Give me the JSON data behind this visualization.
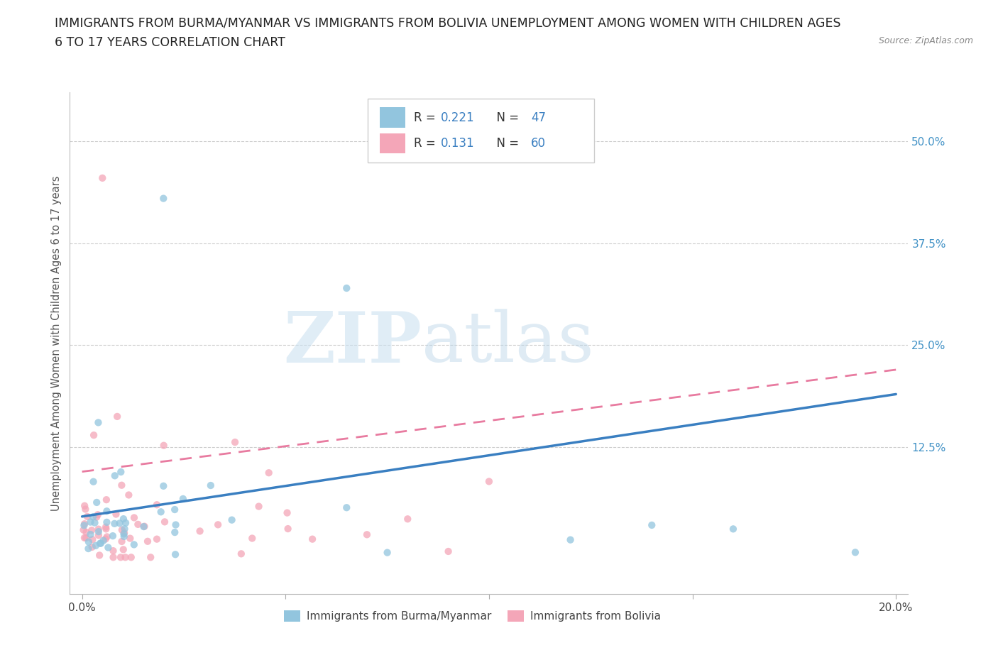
{
  "title_line1": "IMMIGRANTS FROM BURMA/MYANMAR VS IMMIGRANTS FROM BOLIVIA UNEMPLOYMENT AMONG WOMEN WITH CHILDREN AGES",
  "title_line2": "6 TO 17 YEARS CORRELATION CHART",
  "source_text": "Source: ZipAtlas.com",
  "ylabel": "Unemployment Among Women with Children Ages 6 to 17 years",
  "burma_R": 0.221,
  "burma_N": 47,
  "bolivia_R": 0.131,
  "bolivia_N": 60,
  "burma_color": "#92c5de",
  "bolivia_color": "#f4a6b8",
  "burma_line_color": "#3a7fc1",
  "bolivia_line_color": "#e87ba0",
  "tick_color": "#4292c6",
  "watermark_zip": "ZIP",
  "watermark_atlas": "atlas",
  "legend_label_burma": "Immigrants from Burma/Myanmar",
  "legend_label_bolivia": "Immigrants from Bolivia"
}
